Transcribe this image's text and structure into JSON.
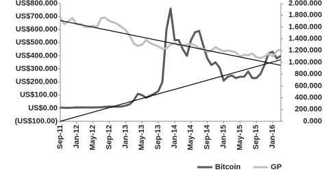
{
  "chart_data": {
    "type": "line",
    "categories": [
      "Sep-11",
      null,
      null,
      null,
      "Jan-12",
      null,
      null,
      null,
      "May-12",
      null,
      null,
      null,
      "Sep-12",
      null,
      null,
      null,
      "Jan-13",
      null,
      null,
      null,
      "May-13",
      null,
      null,
      null,
      "Sep-13",
      null,
      null,
      null,
      "Jan-14",
      null,
      null,
      null,
      "May-14",
      null,
      null,
      null,
      "Sep-14",
      null,
      null,
      null,
      "Jan-15",
      null,
      null,
      null,
      "May-15",
      null,
      null,
      null,
      "Sep-15",
      null,
      null,
      null,
      "Jan-16",
      null,
      null
    ],
    "series": [
      {
        "name": "Bitcoin",
        "color": "#595959",
        "axis": "y",
        "values": [
          5,
          3,
          3,
          4,
          6,
          5,
          5,
          5,
          5,
          6,
          7,
          10,
          12,
          11,
          11,
          13,
          20,
          30,
          60,
          110,
          100,
          80,
          95,
          110,
          130,
          200,
          600,
          760,
          520,
          520,
          450,
          400,
          520,
          580,
          590,
          480,
          380,
          330,
          350,
          310,
          210,
          240,
          250,
          230,
          240,
          240,
          280,
          230,
          230,
          260,
          330,
          420,
          430,
          380,
          400
        ]
      },
      {
        "name": "GP",
        "color": "#bfbfbf",
        "axis": "y2",
        "values": [
          1750,
          1650,
          1700,
          1750,
          1650,
          1650,
          1600,
          1600,
          1620,
          1600,
          1750,
          1760,
          1700,
          1680,
          1650,
          1600,
          1550,
          1450,
          1320,
          1280,
          1300,
          1380,
          1330,
          1300,
          1270,
          1230,
          1240,
          1300,
          1330,
          1290,
          1290,
          1300,
          1310,
          1290,
          1240,
          1230,
          1180,
          1200,
          1260,
          1220,
          1190,
          1200,
          1190,
          1170,
          1100,
          1130,
          1120,
          1150,
          1090,
          1070,
          1100,
          1150,
          1100,
          1190,
          1220
        ]
      }
    ],
    "trendlines": [
      {
        "color": "#000000",
        "axis": "y",
        "values": [
          -100,
          370
        ]
      },
      {
        "color": "#000000",
        "axis": "y2",
        "values": [
          1710,
          950
        ]
      }
    ],
    "ylim": [
      -100,
      800
    ],
    "yticks": [
      {
        "value": -100,
        "label": "(US$100.00)"
      },
      {
        "value": 0,
        "label": "US$0.00"
      },
      {
        "value": 100,
        "label": "US$100.00"
      },
      {
        "value": 200,
        "label": "US$200.000"
      },
      {
        "value": 300,
        "label": "US$300.000"
      },
      {
        "value": 400,
        "label": "US$400.000"
      },
      {
        "value": 500,
        "label": "US$500.000"
      },
      {
        "value": 600,
        "label": "US$600.000"
      },
      {
        "value": 700,
        "label": "US$700.000"
      },
      {
        "value": 800,
        "label": "US$800.000"
      }
    ],
    "y2lim": [
      0,
      2000
    ],
    "y2ticks": [
      {
        "value": 0,
        "label": "0.000"
      },
      {
        "value": 200,
        "label": "200.000"
      },
      {
        "value": 400,
        "label": "400.000"
      },
      {
        "value": 600,
        "label": "600.000"
      },
      {
        "value": 800,
        "label": "800.000"
      },
      {
        "value": 1000,
        "label": "1.000.000"
      },
      {
        "value": 1200,
        "label": "1.200.000"
      },
      {
        "value": 1400,
        "label": "1.400.000"
      },
      {
        "value": 1600,
        "label": "1.600.000"
      },
      {
        "value": 1800,
        "label": "1.800.000"
      },
      {
        "value": 2000,
        "label": "2.000.000"
      }
    ],
    "legend": "bottom"
  }
}
